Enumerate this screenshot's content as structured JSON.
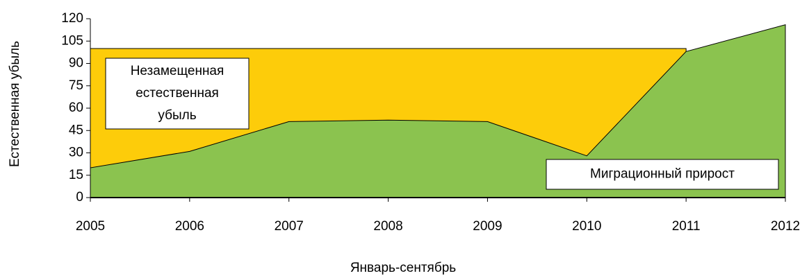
{
  "chart_data": {
    "type": "area",
    "x_label": "Январь-сентябрь",
    "y_label": "Естественная убыль",
    "categories": [
      "2005",
      "2006",
      "2007",
      "2008",
      "2009",
      "2010",
      "2011",
      "2012"
    ],
    "series": [
      {
        "color": "#fdcc0a",
        "values": [
          100,
          100,
          100,
          100,
          100,
          100,
          100,
          null
        ]
      },
      {
        "color": "#8bc34f",
        "values": [
          20,
          31,
          51,
          52,
          51,
          28,
          98,
          116
        ]
      }
    ],
    "ylim": [
      0,
      120
    ],
    "yticks": [
      0,
      15,
      30,
      45,
      60,
      75,
      90,
      105,
      120
    ],
    "annotations": [
      {
        "lines": [
          "Незамещенная",
          "естественная",
          "убыль"
        ]
      },
      {
        "lines": [
          "Миграционный прирост"
        ]
      }
    ]
  }
}
